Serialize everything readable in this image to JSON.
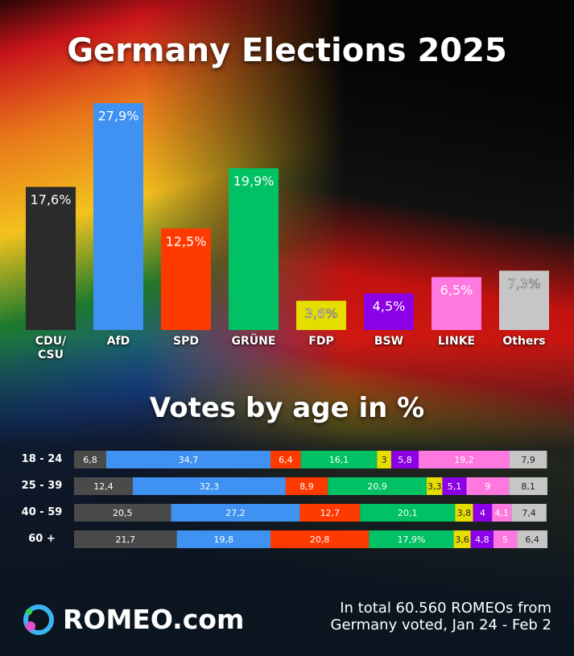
{
  "chart_data": [
    {
      "type": "bar",
      "title": "Germany Elections 2025",
      "categories": [
        "CDU/ CSU",
        "AfD",
        "SPD",
        "GRÜNE",
        "FDP",
        "BSW",
        "LINKE",
        "Others"
      ],
      "values": [
        17.6,
        27.9,
        12.5,
        19.9,
        3.6,
        4.5,
        6.5,
        7.3
      ],
      "value_labels": [
        "17,6%",
        "27,9%",
        "12,5%",
        "19,9%",
        "3,6%",
        "4,5%",
        "6,5%",
        "7,3%"
      ],
      "colors": [
        "#2b2b2b",
        "#3f92f2",
        "#ff3a00",
        "#00c163",
        "#e6dd00",
        "#8c00e6",
        "#ff78e0",
        "#c6c6c6"
      ]
    },
    {
      "type": "stacked-bar-horizontal",
      "title": "Votes by age in %",
      "categories": [
        "18 - 24",
        "25 - 39",
        "40 - 59",
        "60 +"
      ],
      "series": [
        {
          "color": "#4a4a4a",
          "values": [
            6.8,
            12.4,
            20.5,
            21.7
          ],
          "value_labels": [
            "6,8",
            "12,4",
            "20,5",
            "21,7"
          ]
        },
        {
          "color": "#3f92f2",
          "values": [
            34.7,
            32.3,
            27.2,
            19.8
          ],
          "value_labels": [
            "34,7",
            "32,3",
            "27,2",
            "19,8"
          ]
        },
        {
          "color": "#ff3a00",
          "values": [
            6.4,
            8.9,
            12.7,
            20.8
          ],
          "value_labels": [
            "6,4",
            "8,9",
            "12,7",
            "20,8"
          ]
        },
        {
          "color": "#00c163",
          "values": [
            16.1,
            20.9,
            20.1,
            17.9
          ],
          "value_labels": [
            "16,1",
            "20,9",
            "20,1",
            "17,9%"
          ]
        },
        {
          "color": "#e6dd00",
          "values": [
            3,
            3.3,
            3.8,
            3.6
          ],
          "value_labels": [
            "3",
            "3,3",
            "3,8",
            "3,6"
          ]
        },
        {
          "color": "#8c00e6",
          "values": [
            5.8,
            5.1,
            4,
            4.8
          ],
          "value_labels": [
            "5,8",
            "5,1",
            "4",
            "4,8"
          ]
        },
        {
          "color": "#ff78e0",
          "values": [
            19.2,
            9,
            4.1,
            5
          ],
          "value_labels": [
            "19,2",
            "9",
            "4,1",
            "5"
          ]
        },
        {
          "color": "#c6c6c6",
          "values": [
            7.9,
            8.1,
            7.4,
            6.4
          ],
          "value_labels": [
            "7,9",
            "8,1",
            "7,4",
            "6,4"
          ]
        }
      ]
    }
  ],
  "footer": {
    "brand": "ROMEO.com",
    "note": [
      "In total 60.560 ROMEOs from",
      "Germany voted, Jan 24 - Feb 2"
    ]
  }
}
